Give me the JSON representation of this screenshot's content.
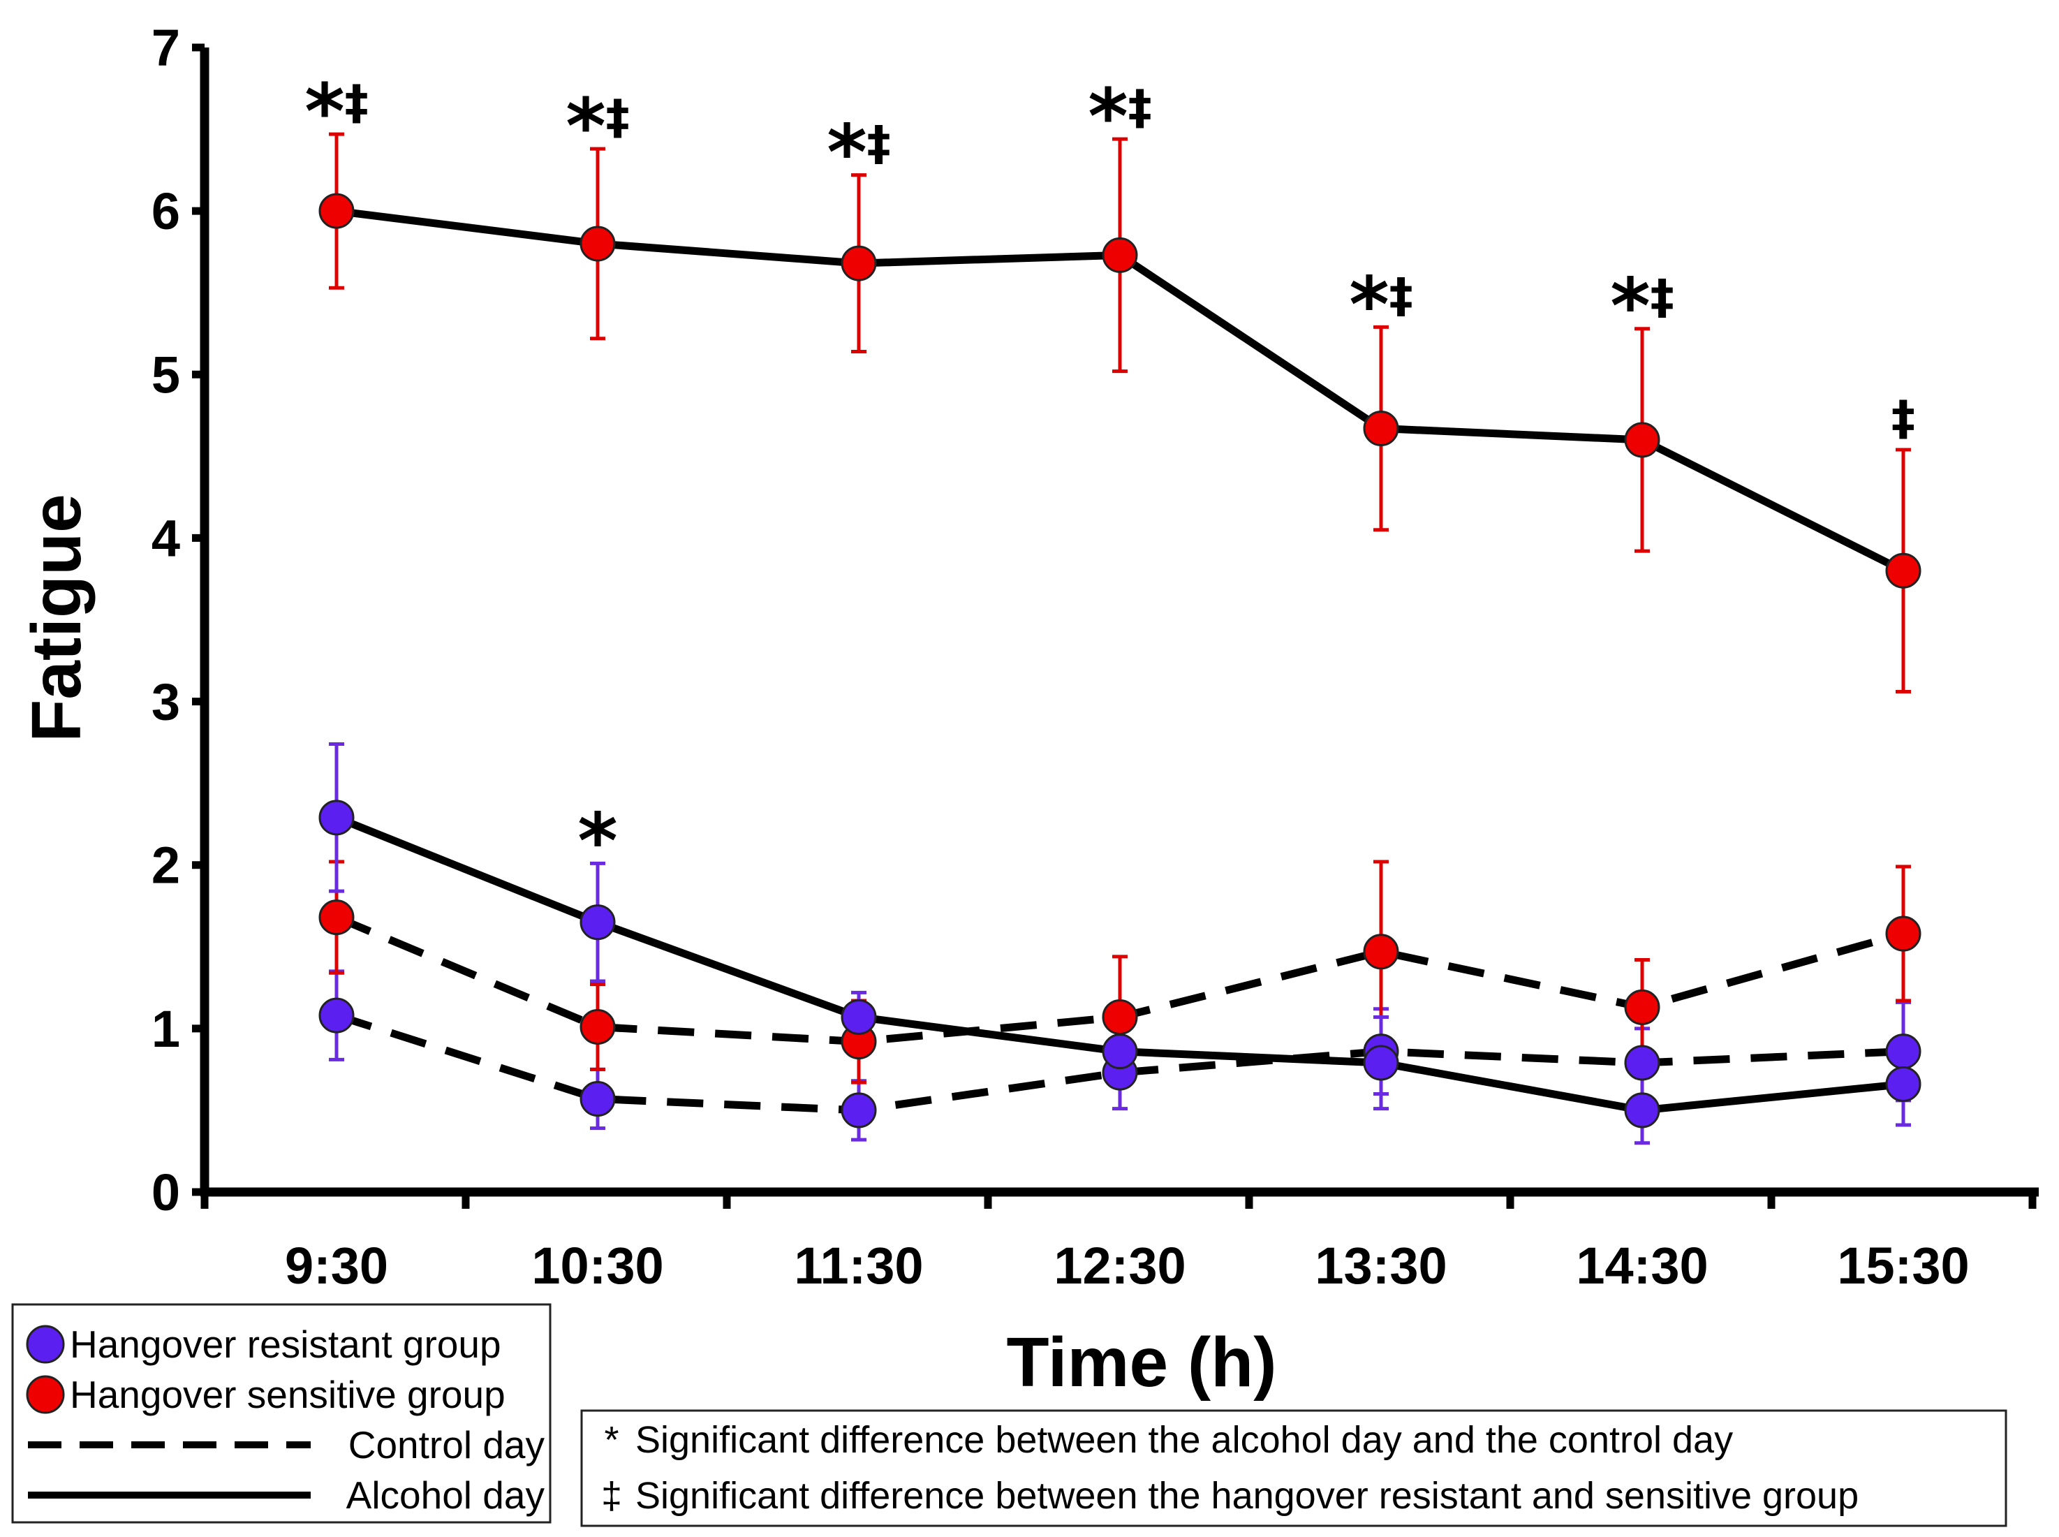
{
  "chart_data": {
    "type": "line",
    "title": "",
    "xlabel": "Time (h)",
    "ylabel": "Fatigue",
    "categories": [
      "9:30",
      "10:30",
      "11:30",
      "12:30",
      "13:30",
      "14:30",
      "15:30"
    ],
    "ylim": [
      0,
      7
    ],
    "yticks": [
      0,
      1,
      2,
      3,
      4,
      5,
      6,
      7
    ],
    "grid": false,
    "series": [
      {
        "name": "Hangover sensitive group - Alcohol day",
        "group": "sensitive",
        "day": "alcohol",
        "values": [
          6.0,
          5.8,
          5.68,
          5.73,
          4.67,
          4.6,
          3.8
        ],
        "errors": [
          0.47,
          0.58,
          0.54,
          0.71,
          0.62,
          0.68,
          0.74
        ]
      },
      {
        "name": "Hangover sensitive group - Control day",
        "group": "sensitive",
        "day": "control",
        "values": [
          1.68,
          1.01,
          0.92,
          1.07,
          1.47,
          1.13,
          1.58
        ],
        "errors": [
          0.34,
          0.26,
          0.25,
          0.37,
          0.55,
          0.29,
          0.41
        ]
      },
      {
        "name": "Hangover resistant group - Alcohol day",
        "group": "resistant",
        "day": "alcohol",
        "values": [
          2.29,
          1.65,
          1.07,
          0.86,
          0.79,
          0.5,
          0.66
        ],
        "errors": [
          0.45,
          0.36,
          0.15,
          0.21,
          0.28,
          0.2,
          0.25
        ]
      },
      {
        "name": "Hangover resistant group - Control day",
        "group": "resistant",
        "day": "control",
        "values": [
          1.08,
          0.57,
          0.5,
          0.73,
          0.86,
          0.79,
          0.86
        ],
        "errors": [
          0.27,
          0.18,
          0.18,
          0.22,
          0.26,
          0.21,
          0.3
        ]
      }
    ],
    "significance": [
      {
        "category": "9:30",
        "text": "*‡"
      },
      {
        "category": "10:30",
        "text": "*‡"
      },
      {
        "category": "11:30",
        "text": "*‡"
      },
      {
        "category": "12:30",
        "text": "*‡"
      },
      {
        "category": "13:30",
        "text": "*‡"
      },
      {
        "category": "14:30",
        "text": "*‡"
      },
      {
        "category": "15:30",
        "text": "‡"
      },
      {
        "category": "10:30",
        "text": "*",
        "series": "resistant-alcohol"
      }
    ],
    "legend": {
      "items": [
        {
          "label": "Hangover resistant group",
          "kind": "marker",
          "color": "#5b1ff0"
        },
        {
          "label": "Hangover sensitive group",
          "kind": "marker",
          "color": "#ee0000"
        },
        {
          "label": "Control day",
          "kind": "dashed"
        },
        {
          "label": "Alcohol day",
          "kind": "solid"
        }
      ],
      "placement": "bottom-left"
    },
    "notes": {
      "items": [
        {
          "symbol": "*",
          "text": "Significant difference between the alcohol day and the control day"
        },
        {
          "symbol": "‡",
          "text": "Significant difference between the hangover resistant and sensitive group"
        }
      ],
      "placement": "bottom-right"
    },
    "colors": {
      "resistant_marker": "#5b1ff0",
      "resistant_error": "#6a2ae0",
      "sensitive_marker": "#ee0000",
      "sensitive_error": "#dd0000",
      "line": "#000000"
    }
  }
}
